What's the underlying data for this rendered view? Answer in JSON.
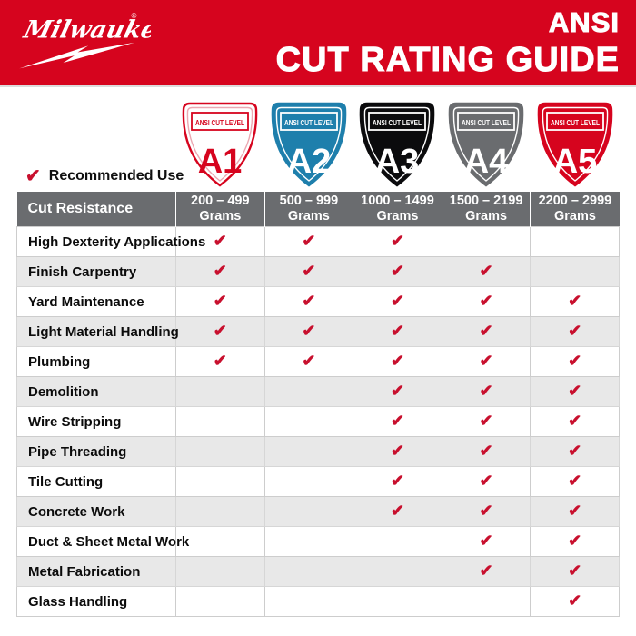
{
  "banner": {
    "brand": "Milwaukee",
    "trademark": "®",
    "title_line1": "ANSI",
    "title_line2": "CUT RATING GUIDE"
  },
  "legend": {
    "label": "Recommended Use"
  },
  "colors": {
    "brand_red": "#D6041E",
    "check_red": "#C8102E",
    "header_gray": "#6A6C6F",
    "row_alt_gray": "#E8E8E8",
    "shield_blue": "#1E7FAC",
    "shield_black": "#0B0B0D",
    "shield_gray": "#6A6C6F"
  },
  "chart_data": {
    "type": "table",
    "title": "ANSI CUT RATING GUIDE",
    "corner_header": "Cut Resistance",
    "check_glyph": "✔",
    "levels": [
      {
        "level": "A1",
        "badge_label": "ANSI CUT LEVEL",
        "range": "200 – 499",
        "unit": "Grams",
        "fill": "#FFFFFF",
        "outline": "#D6041E",
        "inner_line": "#EBA8B2",
        "text_color": "#D6041E"
      },
      {
        "level": "A2",
        "badge_label": "ANSI CUT LEVEL",
        "range": "500 – 999",
        "unit": "Grams",
        "fill": "#1E7FAC",
        "outline": "#1E7FAC",
        "inner_line": "#FFFFFF",
        "text_color": "#FFFFFF"
      },
      {
        "level": "A3",
        "badge_label": "ANSI CUT LEVEL",
        "range": "1000 – 1499",
        "unit": "Grams",
        "fill": "#0B0B0D",
        "outline": "#0B0B0D",
        "inner_line": "#FFFFFF",
        "text_color": "#FFFFFF"
      },
      {
        "level": "A4",
        "badge_label": "ANSI CUT LEVEL",
        "range": "1500 – 2199",
        "unit": "Grams",
        "fill": "#6A6C6F",
        "outline": "#6A6C6F",
        "inner_line": "#FFFFFF",
        "text_color": "#FFFFFF"
      },
      {
        "level": "A5",
        "badge_label": "ANSI CUT LEVEL",
        "range": "2200 – 2999",
        "unit": "Grams",
        "fill": "#D6041E",
        "outline": "#D6041E",
        "inner_line": "#FFFFFF",
        "text_color": "#FFFFFF"
      }
    ],
    "applications": [
      {
        "label": "High Dexterity Applications",
        "recommended": [
          true,
          true,
          true,
          false,
          false
        ]
      },
      {
        "label": "Finish Carpentry",
        "recommended": [
          true,
          true,
          true,
          true,
          false
        ]
      },
      {
        "label": "Yard Maintenance",
        "recommended": [
          true,
          true,
          true,
          true,
          true
        ]
      },
      {
        "label": "Light Material Handling",
        "recommended": [
          true,
          true,
          true,
          true,
          true
        ]
      },
      {
        "label": "Plumbing",
        "recommended": [
          true,
          true,
          true,
          true,
          true
        ]
      },
      {
        "label": "Demolition",
        "recommended": [
          false,
          false,
          true,
          true,
          true
        ]
      },
      {
        "label": "Wire Stripping",
        "recommended": [
          false,
          false,
          true,
          true,
          true
        ]
      },
      {
        "label": "Pipe Threading",
        "recommended": [
          false,
          false,
          true,
          true,
          true
        ]
      },
      {
        "label": "Tile Cutting",
        "recommended": [
          false,
          false,
          true,
          true,
          true
        ]
      },
      {
        "label": "Concrete Work",
        "recommended": [
          false,
          false,
          true,
          true,
          true
        ]
      },
      {
        "label": "Duct & Sheet Metal Work",
        "recommended": [
          false,
          false,
          false,
          true,
          true
        ]
      },
      {
        "label": "Metal Fabrication",
        "recommended": [
          false,
          false,
          false,
          true,
          true
        ]
      },
      {
        "label": "Glass Handling",
        "recommended": [
          false,
          false,
          false,
          false,
          true
        ]
      }
    ]
  }
}
